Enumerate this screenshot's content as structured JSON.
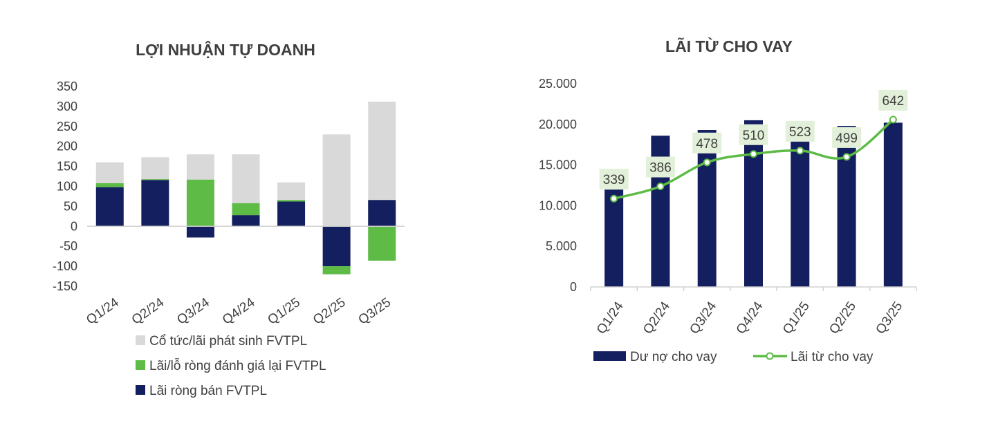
{
  "colors": {
    "navy": "#141f5f",
    "green": "#5dbb46",
    "light_gray": "#d9d9d9",
    "axis": "#d0d0d0",
    "label_bg": "#e2f0d9"
  },
  "chart_data": [
    {
      "type": "bar",
      "stacked": true,
      "title": "LỢI NHUẬN TỰ DOANH",
      "categories": [
        "Q1/24",
        "Q2/24",
        "Q3/24",
        "Q4/24",
        "Q1/25",
        "Q2/25",
        "Q3/25"
      ],
      "series": [
        {
          "name": "Lãi ròng bán FVTPL",
          "color": "#141f5f",
          "values": [
            98,
            116,
            -28,
            28,
            62,
            -100,
            66
          ]
        },
        {
          "name": "Lãi/lỗ ròng đánh giá lại FVTPL",
          "color": "#5dbb46",
          "values": [
            10,
            2,
            117,
            30,
            4,
            -20,
            -86
          ]
        },
        {
          "name": "Cổ tức/lãi phát sinh FVTPL",
          "color": "#d9d9d9",
          "values": [
            52,
            55,
            63,
            122,
            44,
            230,
            246
          ]
        }
      ],
      "ylim": [
        -150,
        350
      ],
      "yticks": [
        "350",
        "300",
        "250",
        "200",
        "150",
        "100",
        "50",
        "0",
        "-50",
        "-100",
        "-150"
      ],
      "legend_position": "bottom",
      "legend_order": [
        "Cổ tức/lãi phát sinh FVTPL",
        "Lãi/lỗ ròng đánh giá lại FVTPL",
        "Lãi ròng bán FVTPL"
      ]
    },
    {
      "type": "bar+line",
      "title": "LÃI TỪ CHO VAY",
      "categories": [
        "Q1/24",
        "Q2/24",
        "Q3/24",
        "Q4/24",
        "Q1/25",
        "Q2/25",
        "Q3/25"
      ],
      "series": [
        {
          "name": "Dư nợ cho vay",
          "type": "bar",
          "color": "#141f5f",
          "values": [
            14200,
            18600,
            19300,
            20500,
            20400,
            19800,
            20200
          ]
        },
        {
          "name": "Lãi từ cho vay",
          "type": "line",
          "color": "#5dbb46",
          "values": [
            339,
            386,
            478,
            510,
            523,
            499,
            642
          ],
          "data_labels": [
            "339",
            "386",
            "478",
            "510",
            "523",
            "499",
            "642"
          ]
        }
      ],
      "ylim": [
        0,
        25000
      ],
      "yticks": [
        "25.000",
        "20.000",
        "15.000",
        "10.000",
        "5.000",
        "0"
      ],
      "legend_position": "bottom"
    }
  ]
}
